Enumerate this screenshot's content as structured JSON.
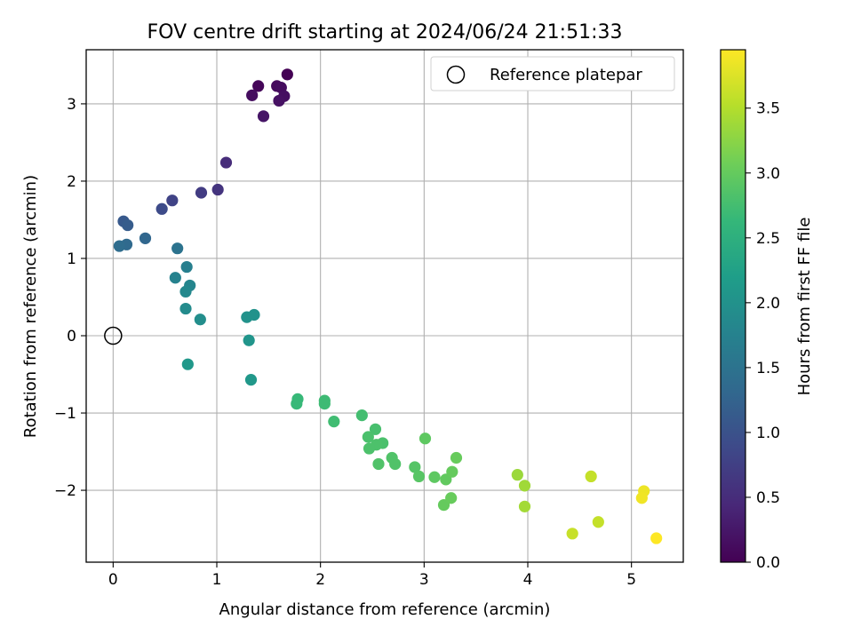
{
  "chart_data": {
    "type": "scatter",
    "title": "FOV centre drift starting at 2024/06/24 21:51:33",
    "xlabel": "Angular distance from reference (arcmin)",
    "ylabel": "Rotation from reference (arcmin)",
    "xlim": [
      -0.26,
      5.5
    ],
    "ylim": [
      -2.93,
      3.7
    ],
    "x_ticks": [
      0,
      1,
      2,
      3,
      4,
      5
    ],
    "y_ticks": [
      -2,
      -1,
      0,
      1,
      2,
      3
    ],
    "grid": true,
    "legend": {
      "placement": "top-right",
      "entries": [
        "Reference platepar"
      ]
    },
    "reference_point": {
      "x": 0,
      "y": 0,
      "marker": "open-circle"
    },
    "colorbar": {
      "label": "Hours from first FF file",
      "colormap": "viridis",
      "range": [
        0,
        3.95
      ],
      "ticks": [
        0.0,
        0.5,
        1.0,
        1.5,
        2.0,
        2.5,
        3.0,
        3.5
      ],
      "tick_labels": [
        "0.0",
        "0.5",
        "1.0",
        "1.5",
        "2.0",
        "2.5",
        "3.0",
        "3.5"
      ]
    },
    "series": [
      {
        "points": [
          {
            "x": 1.68,
            "y": 3.38,
            "c": 0.0
          },
          {
            "x": 1.4,
            "y": 3.23,
            "c": 0.06
          },
          {
            "x": 1.58,
            "y": 3.23,
            "c": 0.1
          },
          {
            "x": 1.62,
            "y": 3.21,
            "c": 0.12
          },
          {
            "x": 1.34,
            "y": 3.11,
            "c": 0.14
          },
          {
            "x": 1.65,
            "y": 3.1,
            "c": 0.16
          },
          {
            "x": 1.6,
            "y": 3.04,
            "c": 0.18
          },
          {
            "x": 1.45,
            "y": 2.84,
            "c": 0.22
          },
          {
            "x": 1.09,
            "y": 2.24,
            "c": 0.5
          },
          {
            "x": 1.01,
            "y": 1.89,
            "c": 0.6
          },
          {
            "x": 0.85,
            "y": 1.85,
            "c": 0.7
          },
          {
            "x": 0.57,
            "y": 1.75,
            "c": 0.8
          },
          {
            "x": 0.47,
            "y": 1.64,
            "c": 0.9
          },
          {
            "x": 0.1,
            "y": 1.48,
            "c": 1.1
          },
          {
            "x": 0.14,
            "y": 1.43,
            "c": 1.15
          },
          {
            "x": 0.31,
            "y": 1.26,
            "c": 1.3
          },
          {
            "x": 0.13,
            "y": 1.18,
            "c": 1.35
          },
          {
            "x": 0.06,
            "y": 1.16,
            "c": 1.4
          },
          {
            "x": 0.62,
            "y": 1.13,
            "c": 1.5
          },
          {
            "x": 0.71,
            "y": 0.89,
            "c": 1.7
          },
          {
            "x": 0.6,
            "y": 0.75,
            "c": 1.75
          },
          {
            "x": 0.74,
            "y": 0.65,
            "c": 1.8
          },
          {
            "x": 0.7,
            "y": 0.57,
            "c": 1.85
          },
          {
            "x": 0.7,
            "y": 0.35,
            "c": 1.9
          },
          {
            "x": 0.84,
            "y": 0.21,
            "c": 1.95
          },
          {
            "x": 1.29,
            "y": 0.24,
            "c": 2.0
          },
          {
            "x": 1.36,
            "y": 0.27,
            "c": 2.0
          },
          {
            "x": 1.31,
            "y": -0.06,
            "c": 2.05
          },
          {
            "x": 0.72,
            "y": -0.37,
            "c": 2.1
          },
          {
            "x": 1.33,
            "y": -0.57,
            "c": 2.1
          },
          {
            "x": 1.78,
            "y": -0.82,
            "c": 2.65
          },
          {
            "x": 1.77,
            "y": -0.88,
            "c": 2.65
          },
          {
            "x": 2.04,
            "y": -0.84,
            "c": 2.7
          },
          {
            "x": 2.04,
            "y": -0.88,
            "c": 2.7
          },
          {
            "x": 2.13,
            "y": -1.11,
            "c": 2.72
          },
          {
            "x": 2.4,
            "y": -1.03,
            "c": 2.75
          },
          {
            "x": 2.53,
            "y": -1.21,
            "c": 2.78
          },
          {
            "x": 2.46,
            "y": -1.31,
            "c": 2.8
          },
          {
            "x": 2.6,
            "y": -1.39,
            "c": 2.8
          },
          {
            "x": 2.54,
            "y": -1.41,
            "c": 2.82
          },
          {
            "x": 2.47,
            "y": -1.46,
            "c": 2.82
          },
          {
            "x": 2.69,
            "y": -1.58,
            "c": 2.85
          },
          {
            "x": 2.72,
            "y": -1.66,
            "c": 2.85
          },
          {
            "x": 2.56,
            "y": -1.66,
            "c": 2.85
          },
          {
            "x": 2.91,
            "y": -1.7,
            "c": 2.88
          },
          {
            "x": 2.95,
            "y": -1.82,
            "c": 2.9
          },
          {
            "x": 3.01,
            "y": -1.33,
            "c": 2.95
          },
          {
            "x": 3.1,
            "y": -1.83,
            "c": 2.95
          },
          {
            "x": 3.21,
            "y": -1.86,
            "c": 2.98
          },
          {
            "x": 3.27,
            "y": -1.76,
            "c": 3.0
          },
          {
            "x": 3.31,
            "y": -1.58,
            "c": 3.02
          },
          {
            "x": 3.19,
            "y": -2.19,
            "c": 3.0
          },
          {
            "x": 3.26,
            "y": -2.1,
            "c": 3.02
          },
          {
            "x": 3.9,
            "y": -1.8,
            "c": 3.35
          },
          {
            "x": 3.97,
            "y": -1.94,
            "c": 3.38
          },
          {
            "x": 3.97,
            "y": -2.21,
            "c": 3.4
          },
          {
            "x": 4.61,
            "y": -1.82,
            "c": 3.6
          },
          {
            "x": 4.43,
            "y": -2.56,
            "c": 3.62
          },
          {
            "x": 4.68,
            "y": -2.41,
            "c": 3.6
          },
          {
            "x": 5.12,
            "y": -2.01,
            "c": 3.85
          },
          {
            "x": 5.1,
            "y": -2.1,
            "c": 3.87
          },
          {
            "x": 5.24,
            "y": -2.62,
            "c": 3.95
          }
        ]
      }
    ]
  }
}
